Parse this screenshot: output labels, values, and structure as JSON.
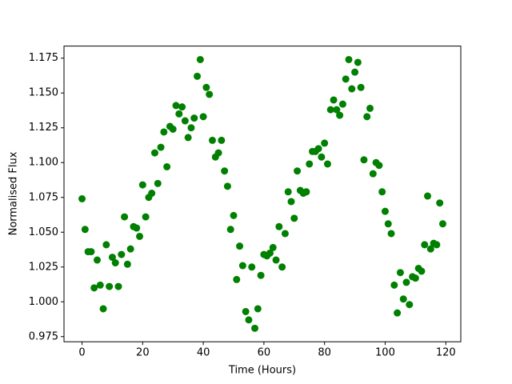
{
  "chart_data": {
    "type": "scatter",
    "x_label": "Time (Hours)",
    "y_label": "Normalised Flux",
    "color": "#008000",
    "x": [
      0,
      1,
      2,
      3,
      4,
      5,
      6,
      7,
      8,
      9,
      10,
      11,
      12,
      13,
      14,
      15,
      16,
      17,
      18,
      19,
      20,
      21,
      22,
      23,
      24,
      25,
      26,
      27,
      28,
      29,
      30,
      31,
      32,
      33,
      34,
      35,
      36,
      37,
      38,
      39,
      40,
      41,
      42,
      43,
      44,
      45,
      46,
      47,
      48,
      49,
      50,
      51,
      52,
      53,
      54,
      55,
      56,
      57,
      58,
      59,
      60,
      61,
      62,
      63,
      64,
      65,
      66,
      67,
      68,
      69,
      70,
      71,
      72,
      73,
      74,
      75,
      76,
      77,
      78,
      79,
      80,
      81,
      82,
      83,
      84,
      85,
      86,
      87,
      88,
      89,
      90,
      91,
      92,
      93,
      94,
      95,
      96,
      97,
      98,
      99,
      100,
      101,
      102,
      103,
      104,
      105,
      106,
      107,
      108,
      109,
      110,
      111,
      112,
      113,
      114,
      115,
      116,
      117,
      118,
      119
    ],
    "values": [
      1.074,
      1.052,
      1.036,
      1.036,
      1.01,
      1.03,
      1.012,
      0.995,
      1.041,
      1.011,
      1.032,
      1.028,
      1.011,
      1.034,
      1.061,
      1.027,
      1.038,
      1.054,
      1.053,
      1.047,
      1.084,
      1.061,
      1.075,
      1.078,
      1.107,
      1.085,
      1.111,
      1.122,
      1.097,
      1.126,
      1.124,
      1.141,
      1.135,
      1.14,
      1.13,
      1.118,
      1.125,
      1.132,
      1.162,
      1.174,
      1.133,
      1.154,
      1.149,
      1.116,
      1.104,
      1.107,
      1.116,
      1.094,
      1.083,
      1.052,
      1.062,
      1.016,
      1.04,
      1.026,
      0.993,
      0.987,
      1.025,
      0.981,
      0.995,
      1.019,
      1.034,
      1.033,
      1.035,
      1.039,
      1.03,
      1.054,
      1.025,
      1.049,
      1.079,
      1.072,
      1.06,
      1.094,
      1.08,
      1.078,
      1.079,
      1.099,
      1.108,
      1.108,
      1.11,
      1.104,
      1.114,
      1.099,
      1.138,
      1.145,
      1.138,
      1.134,
      1.142,
      1.16,
      1.174,
      1.153,
      1.165,
      1.172,
      1.154,
      1.102,
      1.133,
      1.139,
      1.092,
      1.1,
      1.098,
      1.079,
      1.065,
      1.056,
      1.049,
      1.012,
      0.992,
      1.021,
      1.002,
      1.014,
      0.998,
      1.018,
      1.017,
      1.024,
      1.022,
      1.041,
      1.076,
      1.038,
      1.042,
      1.041,
      1.071,
      1.056
    ],
    "xlim": [
      -5.95,
      124.95
    ],
    "xticks": [
      0,
      20,
      40,
      60,
      80,
      100,
      120
    ],
    "ylim": [
      0.9713,
      1.1837
    ],
    "yticks": [
      0.975,
      {
        "value": 1,
        "label": "1.000"
      },
      1.025,
      {
        "value": 1.05,
        "label": "1.050"
      },
      1.075,
      {
        "value": 1.1,
        "label": "1.100"
      },
      1.125,
      {
        "value": 1.15,
        "label": "1.150"
      },
      1.175
    ]
  }
}
